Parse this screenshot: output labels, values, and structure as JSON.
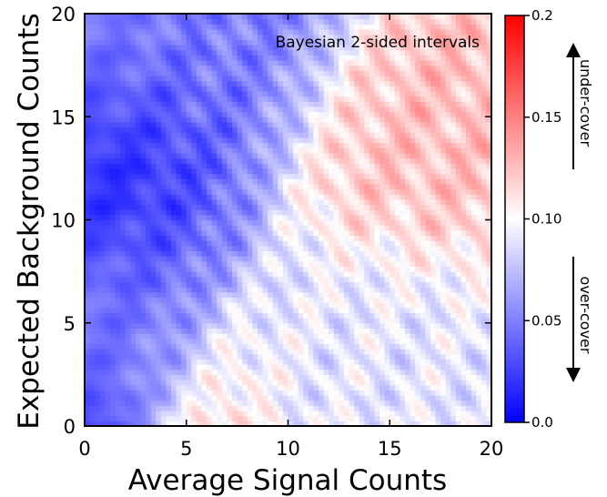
{
  "chart_data": {
    "type": "heatmap",
    "title": "",
    "annotation": "Bayesian 2-sided intervals",
    "xlabel": "Average Signal Counts",
    "ylabel": "Expected Background Counts",
    "xlim": [
      0,
      20
    ],
    "ylim": [
      0,
      20
    ],
    "x_ticks": [
      "0",
      "5",
      "10",
      "15",
      "20"
    ],
    "y_ticks": [
      "0",
      "5",
      "10",
      "15",
      "20"
    ],
    "x_tick_values": [
      0,
      5,
      10,
      15,
      20
    ],
    "y_tick_values": [
      0,
      5,
      10,
      15,
      20
    ],
    "grid": false,
    "colorbar": {
      "range": [
        0.0,
        0.2
      ],
      "center": 0.1,
      "tick_values": [
        0.0,
        0.05,
        0.1,
        0.15,
        0.2
      ],
      "tick_labels": [
        "0.0",
        "0.05",
        "0.10",
        "0.15",
        "0.2"
      ],
      "low_color": "#0000ff",
      "mid_color": "#ffffff",
      "high_color": "#ff0000",
      "upper_arrow_label": "under-cover",
      "lower_arrow_label": "over-cover"
    },
    "grid_resolution": 0.25,
    "region_summary": [
      {
        "region": "signal 0-2, background 0-2",
        "approx_value": 0.01
      },
      {
        "region": "signal 0-8, background 0-20",
        "approx_value": 0.05
      },
      {
        "region": "signal 10-20, background 10-20",
        "approx_value": 0.13
      },
      {
        "region": "signal 10-20, background 0-8",
        "approx_value": 0.1
      }
    ]
  }
}
